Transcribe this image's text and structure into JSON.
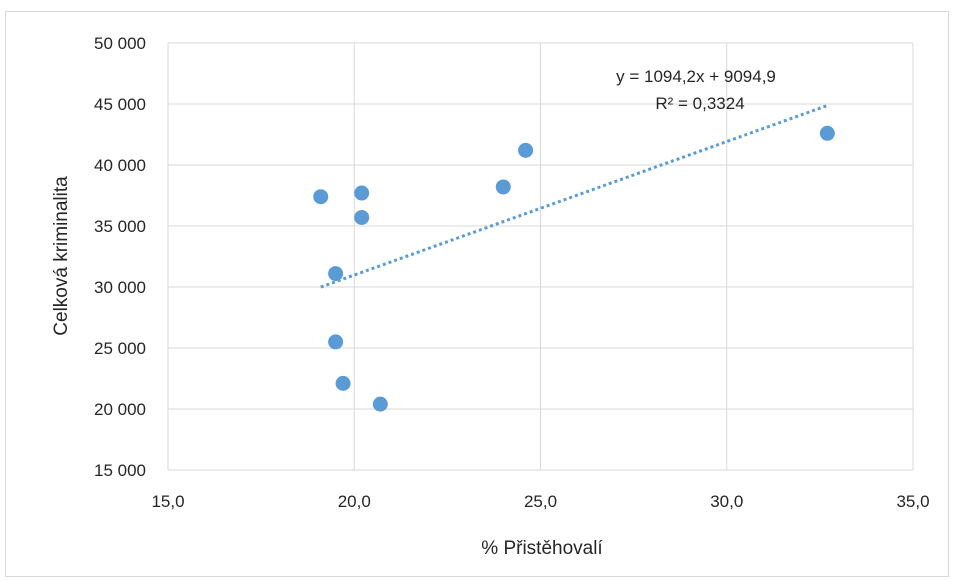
{
  "chart_data": {
    "type": "scatter",
    "title": "",
    "xlabel": "% Přistěhovalí",
    "ylabel": "Celková kriminalita",
    "xlim": [
      15,
      35
    ],
    "ylim": [
      15000,
      50000
    ],
    "x_ticks": [
      15,
      20,
      25,
      30,
      35
    ],
    "y_ticks": [
      15000,
      20000,
      25000,
      30000,
      35000,
      40000,
      45000,
      50000
    ],
    "x_tick_labels": [
      "15,0",
      "20,0",
      "25,0",
      "30,0",
      "35,0"
    ],
    "y_tick_labels": [
      "15 000",
      "20 000",
      "25 000",
      "30 000",
      "35 000",
      "40 000",
      "45 000",
      "50 000"
    ],
    "grid": true,
    "legend": "none",
    "series": [
      {
        "points": [
          {
            "x": 19.1,
            "y": 37400
          },
          {
            "x": 19.5,
            "y": 31100
          },
          {
            "x": 19.5,
            "y": 25500
          },
          {
            "x": 19.7,
            "y": 22100
          },
          {
            "x": 20.2,
            "y": 37700
          },
          {
            "x": 20.2,
            "y": 35700
          },
          {
            "x": 20.7,
            "y": 20400
          },
          {
            "x": 24.0,
            "y": 38200
          },
          {
            "x": 24.6,
            "y": 41200
          },
          {
            "x": 32.7,
            "y": 42600
          }
        ],
        "color": "#5b9bd5"
      }
    ],
    "trendline": {
      "type": "linear",
      "slope": 1094.2,
      "intercept": 9094.9,
      "x_range": [
        19.1,
        32.7
      ],
      "color": "#5b9bd5",
      "style": "dotted",
      "equation_label": "y = 1094,2x + 9094,9",
      "r2_label": "R² = 0,3324"
    }
  }
}
